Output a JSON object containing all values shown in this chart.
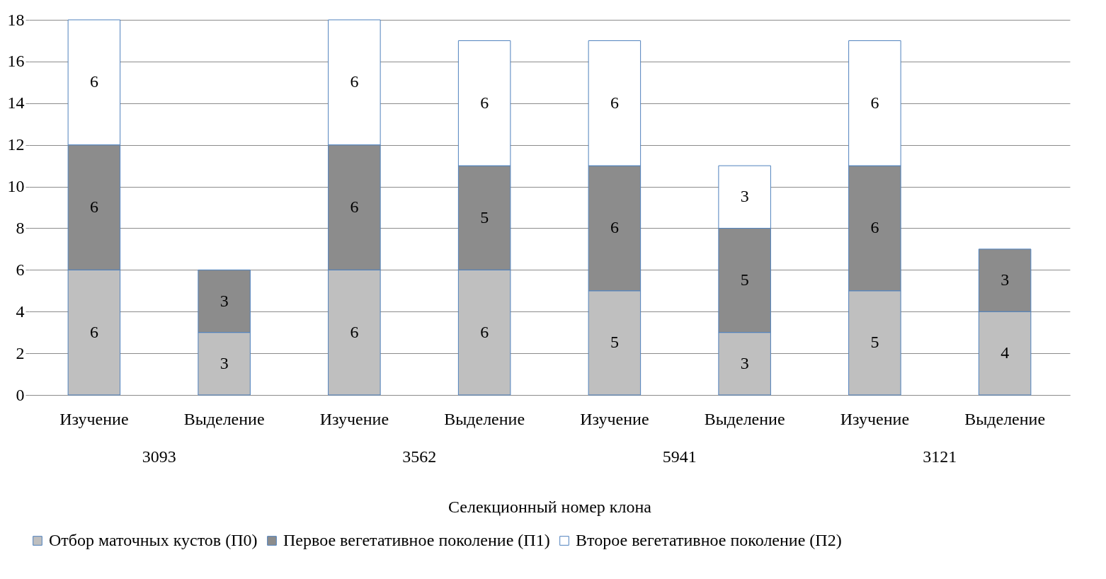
{
  "chart_data": {
    "type": "bar",
    "stacked": true,
    "xlabel": "Селекционный номер клона",
    "categories": [
      "Изучение",
      "Выделение",
      "Изучение",
      "Выделение",
      "Изучение",
      "Выделение",
      "Изучение",
      "Выделение"
    ],
    "annotations": [
      "3093",
      "3562",
      "5941",
      "3121"
    ],
    "series": [
      {
        "name": "Отбор маточных кустов (П0)",
        "color": "#bfbfbf",
        "values": [
          6,
          3,
          6,
          6,
          5,
          3,
          5,
          4
        ]
      },
      {
        "name": "Первое вегетативное поколение (П1)",
        "color": "#8c8c8c",
        "values": [
          6,
          3,
          6,
          5,
          6,
          5,
          6,
          3
        ]
      },
      {
        "name": "Второе вегетативное поколение (П2)",
        "color": "#ffffff",
        "values": [
          6,
          null,
          6,
          6,
          6,
          3,
          6,
          null
        ]
      }
    ],
    "ylim": [
      0,
      18
    ],
    "yticks": [
      0,
      2,
      4,
      6,
      8,
      10,
      12,
      14,
      16,
      18
    ],
    "grid": "y",
    "legend": "bottom",
    "data_labels": true
  }
}
